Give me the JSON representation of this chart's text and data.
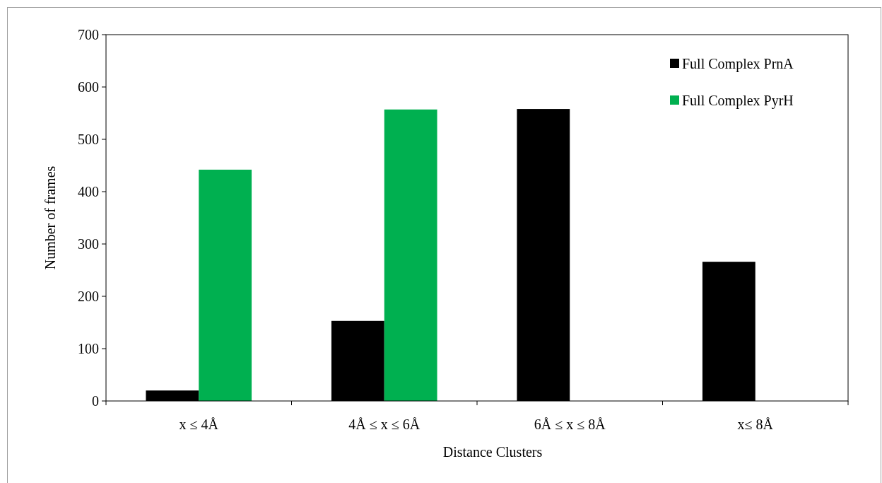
{
  "chart_data": {
    "type": "bar",
    "xlabel": "Distance Clusters",
    "ylabel": "Number of frames",
    "categories": [
      "x ≤ 4Å",
      "4Å ≤ x ≤ 6Å",
      "6Å ≤ x ≤ 8Å",
      "x≤ 8Å"
    ],
    "series": [
      {
        "name": "Full Complex PrnA",
        "color": "#000000",
        "values": [
          20,
          153,
          558,
          266
        ]
      },
      {
        "name": "Full Complex PyrH",
        "color": "#00b050",
        "values": [
          442,
          557,
          0,
          0
        ]
      }
    ],
    "ylim": [
      0,
      700
    ],
    "yticks": [
      0,
      100,
      200,
      300,
      400,
      500,
      600,
      700
    ],
    "grid": false,
    "legend": "top right"
  }
}
